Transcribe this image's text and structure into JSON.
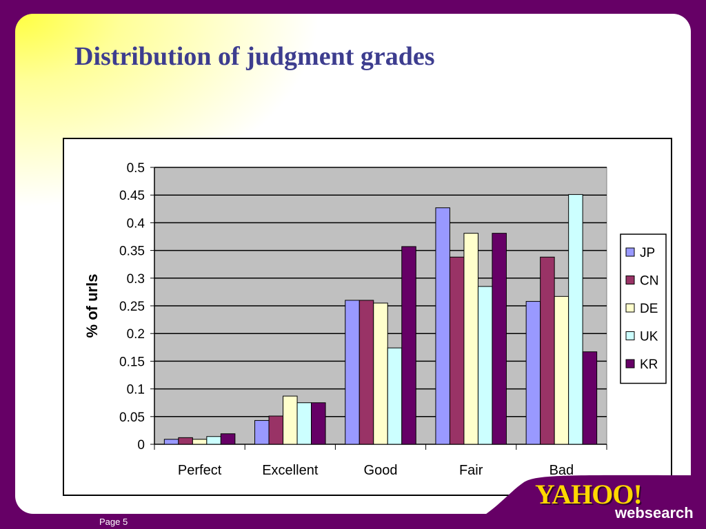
{
  "slide": {
    "title": "Distribution of judgment grades",
    "page_label": "Page 5",
    "logo_text": "YAHOO!",
    "logo_subtext": "websearch"
  },
  "colors": {
    "background_purple": "#660066",
    "title": "#3d3d8f",
    "plot_area": "#c0c0c0",
    "logo_yellow": "#ffd700"
  },
  "chart_data": {
    "type": "bar",
    "title": "",
    "xlabel": "",
    "ylabel": "% of urls",
    "categories": [
      "Perfect",
      "Excellent",
      "Good",
      "Fair",
      "Bad"
    ],
    "ylim": [
      0,
      0.5
    ],
    "yticks": [
      "0",
      "0.05",
      "0.1",
      "0.15",
      "0.2",
      "0.25",
      "0.3",
      "0.35",
      "0.4",
      "0.45",
      "0.5"
    ],
    "grid": true,
    "legend_position": "right",
    "series": [
      {
        "name": "JP",
        "color": "#9999ff",
        "values": [
          0.009,
          0.043,
          0.26,
          0.427,
          0.258
        ]
      },
      {
        "name": "CN",
        "color": "#993366",
        "values": [
          0.012,
          0.051,
          0.26,
          0.338,
          0.338
        ]
      },
      {
        "name": "DE",
        "color": "#ffffcc",
        "values": [
          0.009,
          0.087,
          0.255,
          0.381,
          0.267
        ]
      },
      {
        "name": "UK",
        "color": "#ccffff",
        "values": [
          0.014,
          0.075,
          0.174,
          0.285,
          0.451
        ]
      },
      {
        "name": "KR",
        "color": "#660066",
        "values": [
          0.019,
          0.075,
          0.357,
          0.381,
          0.167
        ]
      }
    ]
  }
}
